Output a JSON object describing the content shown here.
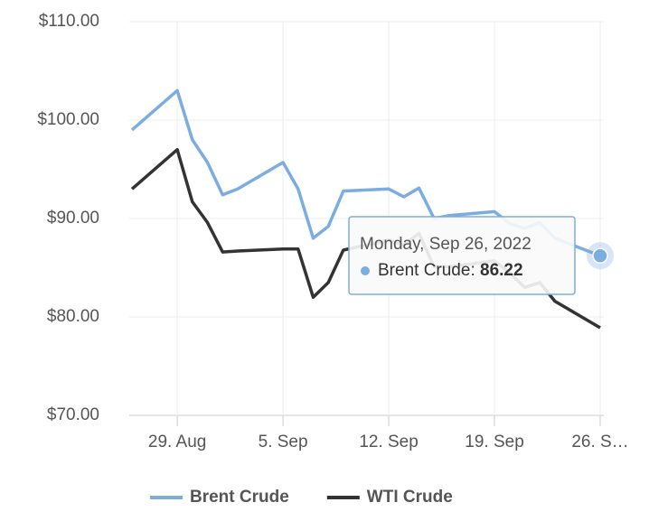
{
  "chart_data": {
    "type": "line",
    "x": [
      "2022-08-26",
      "2022-08-29",
      "2022-08-30",
      "2022-08-31",
      "2022-09-01",
      "2022-09-02",
      "2022-09-05",
      "2022-09-06",
      "2022-09-07",
      "2022-09-08",
      "2022-09-09",
      "2022-09-12",
      "2022-09-13",
      "2022-09-14",
      "2022-09-15",
      "2022-09-16",
      "2022-09-19",
      "2022-09-20",
      "2022-09-21",
      "2022-09-22",
      "2022-09-23",
      "2022-09-26"
    ],
    "series": [
      {
        "name": "Brent Crude",
        "color": "#7cade0",
        "values": [
          99.0,
          103.0,
          98.0,
          95.7,
          92.4,
          93.0,
          95.7,
          93.0,
          88.0,
          89.2,
          92.8,
          93.0,
          92.2,
          93.1,
          90.0,
          90.3,
          90.7,
          89.5,
          89.0,
          89.6,
          88.0,
          86.22
        ]
      },
      {
        "name": "WTI Crude",
        "color": "#333333",
        "values": [
          93.0,
          97.0,
          91.7,
          89.6,
          86.6,
          86.7,
          86.9,
          86.9,
          82.0,
          83.5,
          86.8,
          87.8,
          87.3,
          88.5,
          85.1,
          85.1,
          85.7,
          84.5,
          83.0,
          83.5,
          81.6,
          78.9
        ]
      }
    ],
    "xlim": [
      "2022-08-26",
      "2022-09-26"
    ],
    "xticks": [
      {
        "value": "2022-08-29",
        "label": "29. Aug"
      },
      {
        "value": "2022-09-05",
        "label": "5. Sep"
      },
      {
        "value": "2022-09-12",
        "label": "12. Sep"
      },
      {
        "value": "2022-09-19",
        "label": "19. Sep"
      },
      {
        "value": "2022-09-26",
        "label": "26. S…"
      }
    ],
    "ylim": [
      70,
      110
    ],
    "yticks": [
      {
        "value": 70,
        "label": "$70.00"
      },
      {
        "value": 80,
        "label": "$80.00"
      },
      {
        "value": 90,
        "label": "$90.00"
      },
      {
        "value": 100,
        "label": "$100.00"
      },
      {
        "value": 110,
        "label": "$110.00"
      }
    ],
    "grid": true,
    "legend": "bottom",
    "tooltip": {
      "title": "Monday, Sep 26, 2022"
    }
  }
}
